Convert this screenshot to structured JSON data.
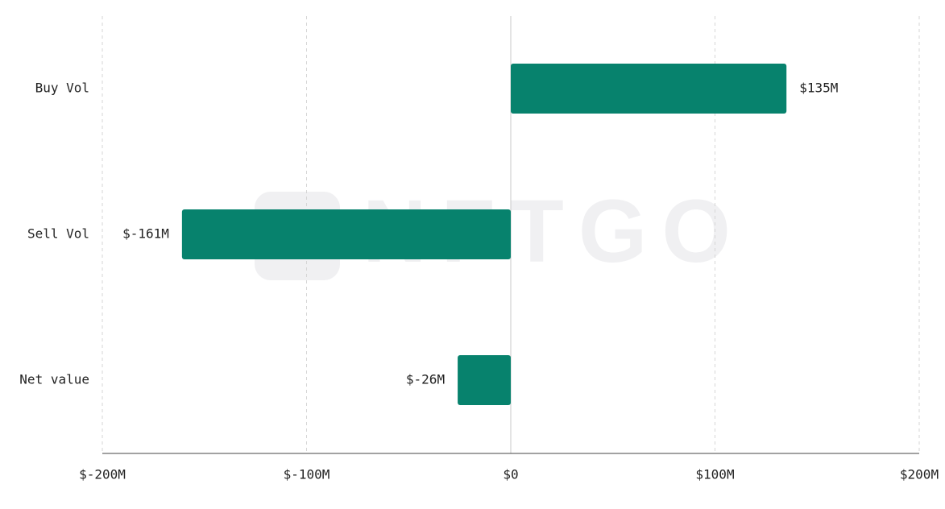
{
  "chart_data": {
    "type": "bar",
    "orientation": "horizontal",
    "watermark": "NFTGO",
    "categories": [
      "Buy Vol",
      "Sell Vol",
      "Net value"
    ],
    "values": [
      135,
      -161,
      -26
    ],
    "value_labels": [
      "$135M",
      "$-161M",
      "$-26M"
    ],
    "color": "#07826d",
    "xlim": [
      -200,
      200
    ],
    "xticks": [
      {
        "value": -200,
        "label": "$-200M"
      },
      {
        "value": -100,
        "label": "$-100M"
      },
      {
        "value": 0,
        "label": "$0"
      },
      {
        "value": 100,
        "label": "$100M"
      },
      {
        "value": 200,
        "label": "$200M"
      }
    ],
    "grid": true
  }
}
